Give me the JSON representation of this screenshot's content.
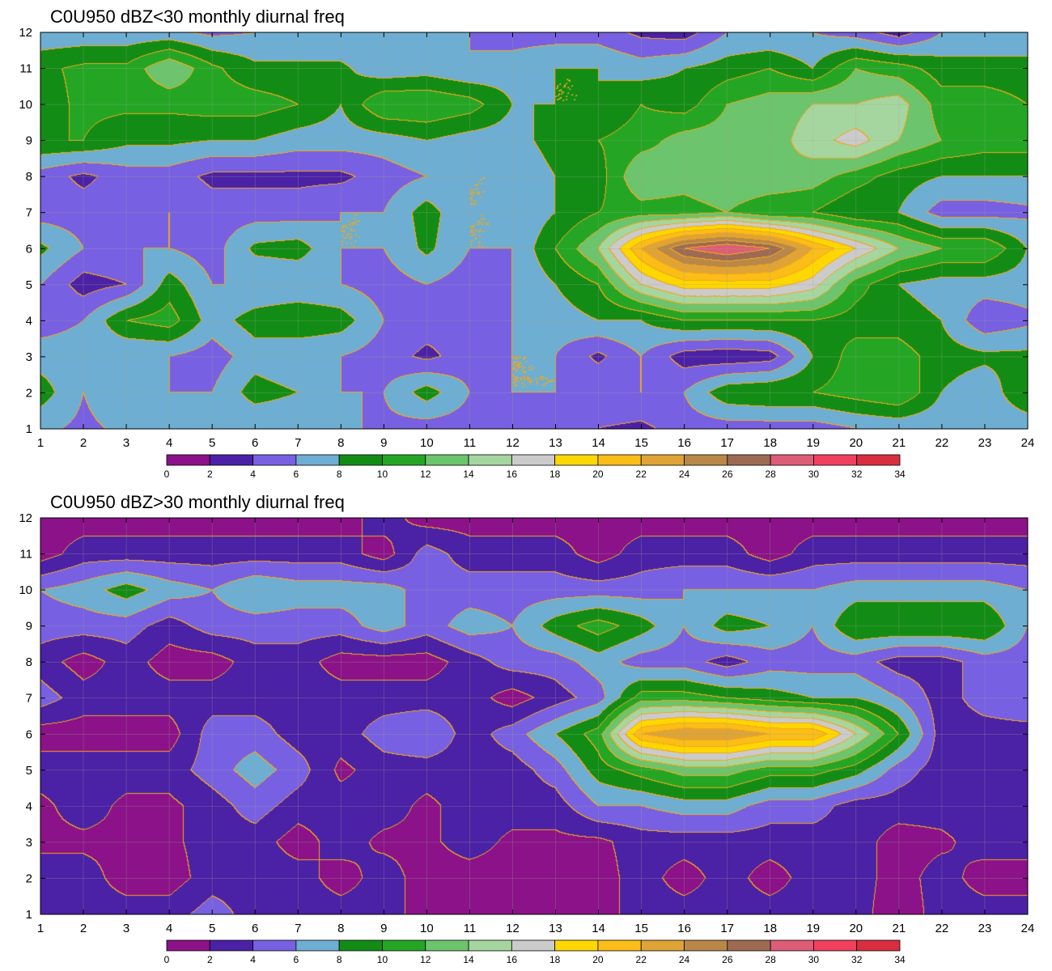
{
  "palette": {
    "colors": [
      "#8b1289",
      "#4b21a6",
      "#7860e2",
      "#6eaed2",
      "#138c16",
      "#24a624",
      "#6cc46c",
      "#a6d6a0",
      "#cbcbcb",
      "#fed700",
      "#fbbd18",
      "#dfa336",
      "#b98849",
      "#9d6b53",
      "#dd5d76",
      "#f1405e",
      "#d82e3f"
    ],
    "boundaries": [
      "0",
      "2",
      "4",
      "6",
      "8",
      "10",
      "12",
      "14",
      "16",
      "18",
      "20",
      "22",
      "24",
      "26",
      "28",
      "30",
      "32",
      "34"
    ],
    "contour_line": "#f2a71c"
  },
  "chart_data": [
    {
      "type": "heatmap",
      "title": "C0U950 dBZ<30 monthly diurnal freq",
      "x_ticks": [
        "1",
        "2",
        "3",
        "4",
        "5",
        "6",
        "7",
        "8",
        "9",
        "10",
        "11",
        "12",
        "13",
        "14",
        "15",
        "16",
        "17",
        "18",
        "19",
        "20",
        "21",
        "22",
        "23",
        "24"
      ],
      "y_ticks": [
        "1",
        "2",
        "3",
        "4",
        "5",
        "6",
        "7",
        "8",
        "9",
        "10",
        "11",
        "12"
      ],
      "xlim": [
        1,
        24
      ],
      "ylim": [
        1,
        12
      ],
      "z": [
        [
          6.5,
          5.5,
          6.5,
          7,
          6,
          6,
          6,
          6.5,
          5.5,
          5,
          5,
          5,
          4.5,
          4,
          3.5,
          5,
          5,
          5,
          5,
          6,
          6.5,
          6.5,
          6.5,
          6.5
        ],
        [
          9,
          6,
          8,
          6,
          6,
          9,
          8,
          6,
          6,
          9,
          6,
          6,
          6,
          6,
          6,
          6,
          9.5,
          10,
          10,
          11,
          12,
          8,
          6.5,
          10
        ],
        [
          7,
          7,
          6,
          6,
          5,
          7,
          6,
          6,
          5,
          3.5,
          5,
          6,
          6,
          3.5,
          6,
          3,
          2.5,
          3,
          8,
          11,
          11,
          9,
          8.5,
          8.5
        ],
        [
          5,
          6,
          10,
          11,
          7,
          9,
          10,
          9,
          6,
          5,
          4.5,
          6,
          7,
          8,
          8,
          10,
          10,
          10,
          10,
          9,
          9,
          8,
          4.5,
          5.5
        ],
        [
          6,
          3,
          4,
          9,
          6,
          6,
          6,
          6,
          5,
          6,
          5,
          6,
          8,
          10,
          16,
          19,
          19,
          19,
          17,
          11,
          8,
          7,
          7,
          7
        ],
        [
          8.5,
          6,
          6,
          6,
          5,
          8.5,
          9,
          6,
          6,
          8.5,
          6,
          6,
          10,
          14,
          22,
          28,
          30,
          28,
          22,
          18,
          14,
          12,
          12,
          8
        ],
        [
          5,
          5,
          5,
          6,
          5,
          5,
          5,
          6,
          6,
          9,
          6,
          6,
          8,
          10,
          11,
          11,
          12,
          10,
          10,
          8,
          8,
          5,
          5,
          5.5
        ],
        [
          5,
          3.5,
          5,
          5,
          3.5,
          3.5,
          3.5,
          3.5,
          5,
          6,
          6,
          6,
          8,
          9,
          14,
          13,
          14,
          14,
          13,
          11,
          9,
          8,
          8,
          8
        ],
        [
          10,
          10,
          8.5,
          8.5,
          8,
          8,
          7,
          7,
          7,
          8,
          7,
          7,
          9,
          10,
          11,
          13,
          13,
          13,
          15,
          17,
          14,
          12,
          11,
          11
        ],
        [
          9,
          10.5,
          10.5,
          10.5,
          11,
          11,
          10,
          8,
          12,
          12,
          11,
          8,
          8,
          8,
          10,
          9,
          12,
          13,
          14,
          14,
          15,
          11,
          11,
          10
        ],
        [
          9.5,
          10.5,
          10.5,
          14,
          10.5,
          8.5,
          8.5,
          8.5,
          6.5,
          7,
          6,
          7,
          8,
          8,
          7,
          8,
          9,
          10,
          8,
          12,
          11,
          9,
          9,
          9
        ],
        [
          6.5,
          6.5,
          6.5,
          6.5,
          5.5,
          6,
          6,
          6,
          6,
          6,
          6,
          5,
          5,
          5,
          3.5,
          3,
          6,
          6,
          6,
          5,
          3,
          6,
          6,
          6
        ]
      ]
    },
    {
      "type": "heatmap",
      "title": "C0U950 dBZ>30 monthly diurnal freq",
      "x_ticks": [
        "1",
        "2",
        "3",
        "4",
        "5",
        "6",
        "7",
        "8",
        "9",
        "10",
        "11",
        "12",
        "13",
        "14",
        "15",
        "16",
        "17",
        "18",
        "19",
        "20",
        "21",
        "22",
        "23",
        "24"
      ],
      "y_ticks": [
        "1",
        "2",
        "3",
        "4",
        "5",
        "6",
        "7",
        "8",
        "9",
        "10",
        "11",
        "12"
      ],
      "xlim": [
        1,
        24
      ],
      "ylim": [
        1,
        12
      ],
      "z": [
        [
          3,
          3,
          3,
          3,
          5,
          3,
          3,
          3,
          3,
          1,
          1,
          1,
          1,
          1,
          3,
          3,
          3,
          3,
          3,
          3,
          0.5,
          3,
          3,
          3
        ],
        [
          3,
          3,
          1,
          1,
          3,
          3,
          3,
          1,
          3,
          1,
          1,
          1,
          1,
          1,
          3,
          1,
          3,
          1,
          3,
          3,
          1,
          3,
          1,
          1
        ],
        [
          1.5,
          1.5,
          1.5,
          1.5,
          3,
          3,
          1,
          3,
          1.5,
          1.5,
          3,
          1.5,
          1.5,
          1.5,
          3,
          3,
          3,
          3,
          3,
          3,
          1,
          1.5,
          3,
          3
        ],
        [
          1.5,
          3,
          1.5,
          1.5,
          3,
          5,
          3,
          3,
          3,
          1.5,
          3,
          3,
          3,
          6,
          6,
          7,
          7,
          5,
          5,
          3,
          3,
          3,
          3,
          3
        ],
        [
          3,
          3,
          3,
          3,
          5,
          7,
          5,
          1.5,
          3,
          3,
          3,
          3,
          5,
          9,
          11,
          13,
          13,
          11,
          11,
          9,
          5,
          3,
          3,
          3
        ],
        [
          1,
          1,
          1,
          1,
          5,
          5,
          3,
          3,
          5,
          6,
          3,
          5,
          8,
          11,
          22,
          24,
          24,
          22,
          22,
          16,
          10,
          3,
          3,
          3
        ],
        [
          5,
          3,
          3,
          3,
          3,
          3,
          3,
          3,
          3,
          3,
          3,
          1,
          3,
          5,
          11,
          11,
          10,
          9,
          8,
          8,
          6,
          3,
          5,
          6
        ],
        [
          3,
          1,
          3,
          1,
          1,
          3,
          3,
          1,
          1,
          1,
          3,
          5,
          5,
          7,
          5,
          5,
          3,
          5,
          5,
          5,
          3,
          3,
          5,
          5
        ],
        [
          5,
          5,
          5,
          3,
          5,
          5,
          5,
          5,
          7,
          5,
          7,
          6,
          9,
          11,
          9,
          6,
          9,
          8,
          6,
          10,
          10,
          10,
          10,
          6
        ],
        [
          6,
          7,
          9,
          7,
          6,
          8,
          7,
          7,
          7,
          5,
          5,
          5,
          5,
          5,
          5,
          6,
          6,
          6,
          6,
          7,
          7,
          7,
          7,
          6
        ],
        [
          1,
          3,
          3,
          3,
          3,
          3,
          3,
          3,
          1,
          5,
          3,
          3,
          3,
          1,
          3,
          3,
          3,
          1,
          3,
          3,
          3,
          3,
          3,
          3
        ],
        [
          1,
          1,
          1,
          1,
          1,
          1,
          1,
          1,
          3,
          1,
          1,
          1,
          1,
          1,
          1,
          1,
          1,
          1,
          1,
          1,
          1,
          1,
          1,
          1
        ]
      ]
    }
  ]
}
